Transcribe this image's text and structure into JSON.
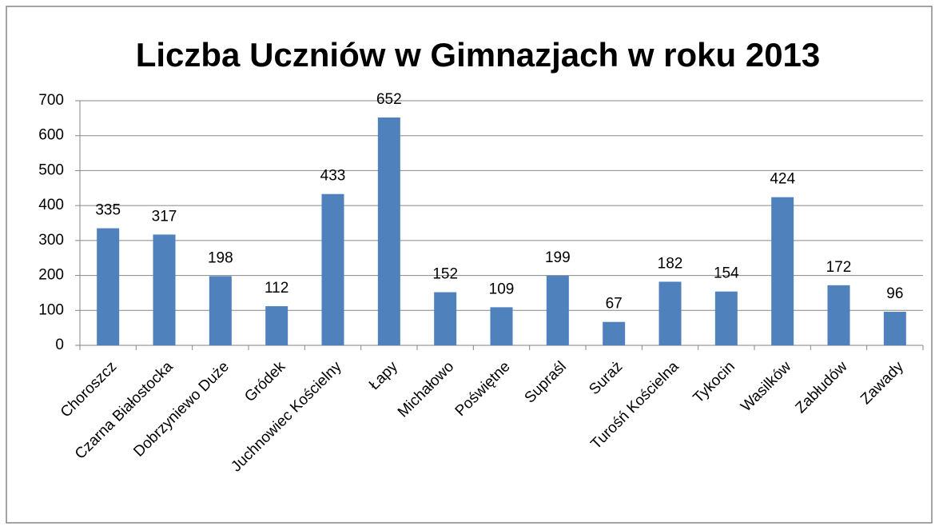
{
  "chart_data": {
    "type": "bar",
    "title": "Liczba Uczniów w Gimnazjach w roku 2013",
    "categories": [
      "Choroszcz",
      "Czarna Białostocka",
      "Dobrzyniewo Duże",
      "Gródek",
      "Juchnowiec Kościelny",
      "Łapy",
      "Michałowo",
      "Poświętne",
      "Supraśl",
      "Suraż",
      "Turośń Kościelna",
      "Tykocin",
      "Wasilków",
      "Zabłudów",
      "Zawady"
    ],
    "values": [
      335,
      317,
      198,
      112,
      433,
      652,
      152,
      109,
      199,
      67,
      182,
      154,
      424,
      172,
      96
    ],
    "color": "#4f81bd",
    "ylim": [
      0,
      700
    ],
    "yticks": [
      0,
      100,
      200,
      300,
      400,
      500,
      600,
      700
    ],
    "grid": true
  }
}
